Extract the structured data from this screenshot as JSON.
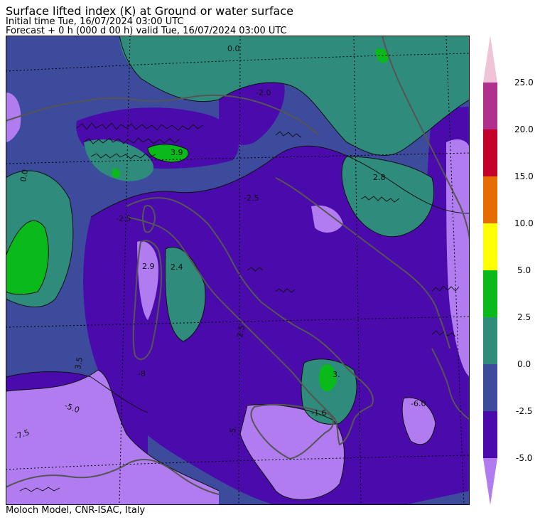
{
  "header": {
    "title": "Surface lifted index (K) at Ground or water surface",
    "initial_time": "Initial time  Tue, 16/07/2024  03:00 UTC",
    "forecast": "Forecast  +   0 h  (000 d 00 h)  valid Tue, 16/07/2024 03:00 UTC"
  },
  "footer": {
    "credit": "Moloch Model, CNR-ISAC, Italy"
  },
  "colorbar": {
    "ticks": [
      "-5.0",
      "-2.5",
      "0.0",
      "2.5",
      "5.0",
      "10.0",
      "15.0",
      "20.0",
      "25.0"
    ],
    "bands": [
      {
        "color": "#b07cf0",
        "range": "< -5.0"
      },
      {
        "color": "#4a0aac",
        "range": "-5.0 to -2.5"
      },
      {
        "color": "#3c4b9c",
        "range": "-2.5 to 0.0"
      },
      {
        "color": "#2f8c7c",
        "range": "0.0 to 2.5"
      },
      {
        "color": "#0aba1a",
        "range": "2.5 to 5.0"
      },
      {
        "color": "#ffff00",
        "range": "5.0 to 10.0"
      },
      {
        "color": "#e66e00",
        "range": "10.0 to 15.0"
      },
      {
        "color": "#c4002a",
        "range": "15.0 to 20.0"
      },
      {
        "color": "#b0308e",
        "range": "20.0 to 25.0"
      },
      {
        "color": "#f0c4d6",
        "range": "> 25.0"
      }
    ]
  },
  "map_labels": [
    {
      "name": "label-0-0-north",
      "text": "0.0"
    },
    {
      "name": "label-minus2-alps",
      "text": "-2.0"
    },
    {
      "name": "label-3-9",
      "text": "3.9"
    },
    {
      "name": "label-2-8",
      "text": "2.8"
    },
    {
      "name": "label-2-5-west",
      "text": "-2.5"
    },
    {
      "name": "label-2-5-center",
      "text": "-2.5"
    },
    {
      "name": "label-2-9",
      "text": "2.9"
    },
    {
      "name": "label-2-4",
      "text": "2.4"
    },
    {
      "name": "label-2-5-sea",
      "text": "2.5"
    },
    {
      "name": "label-3-5-left",
      "text": "3.5"
    },
    {
      "name": "label-5-0",
      "text": "-5.0"
    },
    {
      "name": "label-7-5",
      "text": "-7.5"
    },
    {
      "name": "label-6-0",
      "text": "-6.0"
    },
    {
      "name": "label-1-6",
      "text": "-1.6"
    },
    {
      "name": "label-3-south",
      "text": "3."
    },
    {
      "name": "label-5-south",
      "text": "-5."
    },
    {
      "name": "label-8",
      "text": "-8"
    },
    {
      "name": "label-0-0-west",
      "text": "0.0"
    }
  ],
  "colors": {
    "below_m5": "#b07cf0",
    "m5_to_m2_5": "#4a0aac",
    "m2_5_to_0": "#3c4b9c",
    "0_to_2_5": "#2f8c7c",
    "2_5_to_5": "#0aba1a",
    "coastline": "#555555"
  }
}
